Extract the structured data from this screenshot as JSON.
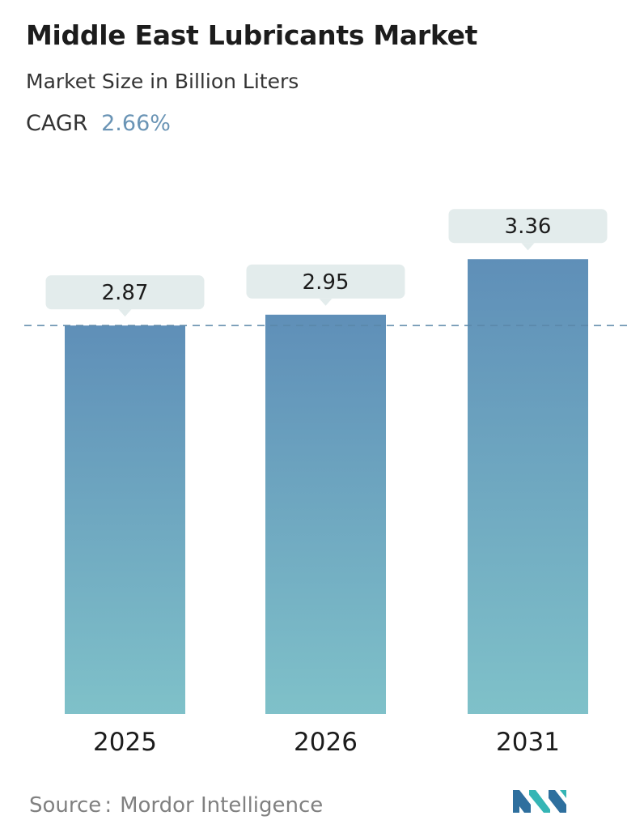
{
  "header": {
    "title": "Middle East Lubricants Market",
    "subtitle": "Market Size in Billion Liters",
    "cagr_label": "CAGR",
    "cagr_value": "2.66%"
  },
  "chart_data": {
    "type": "bar",
    "categories": [
      "2025",
      "2026",
      "2031"
    ],
    "values": [
      2.87,
      2.95,
      3.36
    ],
    "value_labels": [
      "2.87",
      "2.95",
      "3.36"
    ],
    "title": "Middle East Lubricants Market",
    "xlabel": "",
    "ylabel": "",
    "ylim": [
      0,
      3.36
    ],
    "grid": false,
    "reference_line": 2.87,
    "bar_gradient": [
      "#5f8fb8",
      "#7fc1c9"
    ],
    "label_box_color": "#e3ecec"
  },
  "footer": {
    "source_label": "Source",
    "source_sep": ":",
    "source_name": "Mordor Intelligence"
  },
  "logo": {
    "name": "mordor-intelligence-logo",
    "colors": [
      "#2e6f9e",
      "#35b5b5"
    ]
  }
}
